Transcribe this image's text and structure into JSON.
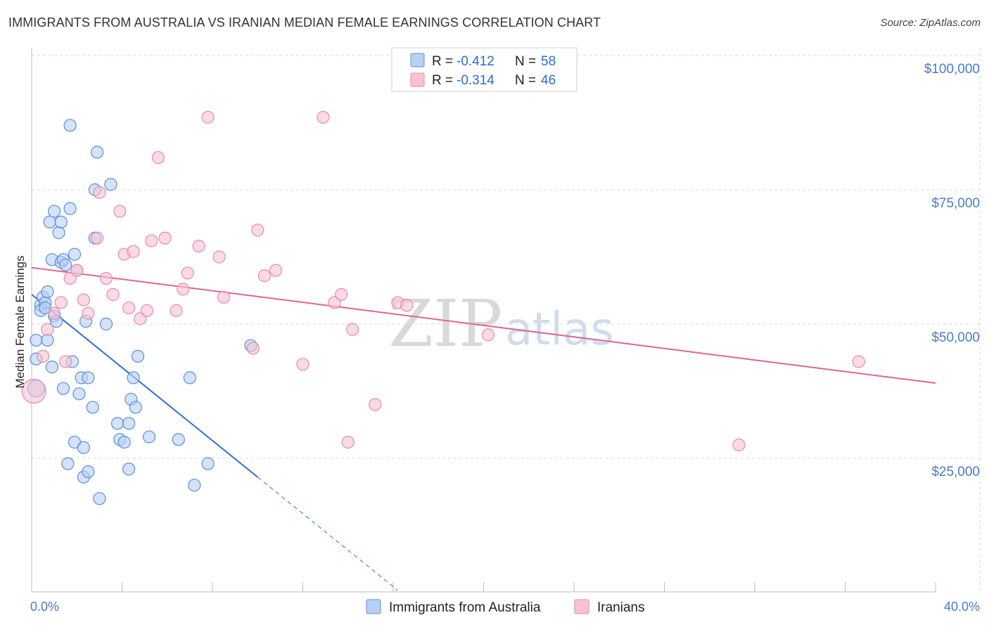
{
  "header": {
    "title": "IMMIGRANTS FROM AUSTRALIA VS IRANIAN MEDIAN FEMALE EARNINGS CORRELATION CHART",
    "source": "Source: ZipAtlas.com"
  },
  "watermark": {
    "zip": "ZIP",
    "atlas": "atlas"
  },
  "colors": {
    "series1_fill": "#b7d0f3",
    "series1_stroke": "#5b8fd9",
    "series1_line": "#2f6fd4",
    "series2_fill": "#f7c3d3",
    "series2_stroke": "#e88aa8",
    "series2_line": "#e0668f",
    "grid": "#d8d8d8",
    "tick_text": "#4a7cc8"
  },
  "legend": {
    "rows": [
      {
        "r_label": "R = ",
        "r_value": "-0.412",
        "n_label": "N = ",
        "n_value": "58"
      },
      {
        "r_label": "R = ",
        "r_value": "-0.314",
        "n_label": "N = ",
        "n_value": "46"
      }
    ]
  },
  "chart_data": {
    "type": "scatter",
    "title": "IMMIGRANTS FROM AUSTRALIA VS IRANIAN MEDIAN FEMALE EARNINGS CORRELATION CHART",
    "xlabel": "",
    "ylabel": "Median Female Earnings",
    "xlim": [
      0,
      40
    ],
    "ylim": [
      0,
      105000
    ],
    "x_tick_labels": [
      "0.0%",
      "40.0%"
    ],
    "y_ticks": [
      {
        "value": 25000,
        "label": "$25,000"
      },
      {
        "value": 50000,
        "label": "$50,000"
      },
      {
        "value": 75000,
        "label": "$75,000"
      },
      {
        "value": 100000,
        "label": "$100,000"
      }
    ],
    "grid": true,
    "series": [
      {
        "name": "Immigrants from Australia",
        "trend": {
          "x0": 0.0,
          "y0": 55500,
          "x1": 10.0,
          "y1": 21500,
          "dash_to_x": 16.2
        },
        "points": [
          [
            0.2,
            38000
          ],
          [
            0.2,
            47000
          ],
          [
            0.2,
            43500
          ],
          [
            0.4,
            53500
          ],
          [
            0.4,
            52500
          ],
          [
            0.5,
            55000
          ],
          [
            0.6,
            54000
          ],
          [
            0.7,
            56000
          ],
          [
            0.7,
            47000
          ],
          [
            0.8,
            69000
          ],
          [
            0.9,
            62000
          ],
          [
            0.9,
            42000
          ],
          [
            1.0,
            71000
          ],
          [
            1.0,
            51500
          ],
          [
            1.1,
            50500
          ],
          [
            1.2,
            67000
          ],
          [
            1.3,
            69000
          ],
          [
            1.3,
            61500
          ],
          [
            1.4,
            62000
          ],
          [
            1.4,
            38000
          ],
          [
            1.5,
            61000
          ],
          [
            1.6,
            24000
          ],
          [
            1.7,
            87000
          ],
          [
            1.7,
            71500
          ],
          [
            1.8,
            43000
          ],
          [
            1.9,
            63000
          ],
          [
            1.9,
            28000
          ],
          [
            2.0,
            60000
          ],
          [
            2.1,
            37000
          ],
          [
            2.2,
            40000
          ],
          [
            2.3,
            21500
          ],
          [
            2.3,
            27000
          ],
          [
            2.4,
            50500
          ],
          [
            2.5,
            22500
          ],
          [
            2.7,
            34500
          ],
          [
            2.8,
            75000
          ],
          [
            2.8,
            66000
          ],
          [
            2.9,
            82000
          ],
          [
            3.0,
            17500
          ],
          [
            3.3,
            50000
          ],
          [
            3.5,
            76000
          ],
          [
            3.8,
            31500
          ],
          [
            3.9,
            28500
          ],
          [
            4.1,
            28000
          ],
          [
            4.3,
            31500
          ],
          [
            4.3,
            23000
          ],
          [
            4.4,
            36000
          ],
          [
            4.5,
            40000
          ],
          [
            4.6,
            34500
          ],
          [
            4.7,
            44000
          ],
          [
            5.2,
            29000
          ],
          [
            6.5,
            28500
          ],
          [
            7.0,
            40000
          ],
          [
            7.2,
            20000
          ],
          [
            7.8,
            24000
          ],
          [
            9.7,
            46000
          ],
          [
            2.5,
            40000
          ],
          [
            0.6,
            53000
          ]
        ]
      },
      {
        "name": "Iranians",
        "trend": {
          "x0": 0.0,
          "y0": 60500,
          "x1": 40.0,
          "y1": 39000
        },
        "points": [
          [
            0.1,
            37500
          ],
          [
            0.5,
            44000
          ],
          [
            0.7,
            49000
          ],
          [
            1.0,
            52000
          ],
          [
            1.3,
            54000
          ],
          [
            1.5,
            43000
          ],
          [
            1.7,
            58500
          ],
          [
            2.0,
            60000
          ],
          [
            2.3,
            54500
          ],
          [
            2.5,
            52000
          ],
          [
            2.9,
            66000
          ],
          [
            3.0,
            74500
          ],
          [
            3.3,
            58500
          ],
          [
            3.6,
            55500
          ],
          [
            3.9,
            71000
          ],
          [
            4.1,
            63000
          ],
          [
            4.3,
            53000
          ],
          [
            4.5,
            63500
          ],
          [
            4.8,
            51000
          ],
          [
            5.1,
            52500
          ],
          [
            5.3,
            65500
          ],
          [
            5.6,
            81000
          ],
          [
            5.9,
            66000
          ],
          [
            6.4,
            52500
          ],
          [
            6.7,
            56500
          ],
          [
            6.9,
            59500
          ],
          [
            7.4,
            64500
          ],
          [
            7.8,
            88500
          ],
          [
            8.3,
            62500
          ],
          [
            8.5,
            55000
          ],
          [
            9.8,
            45500
          ],
          [
            10.0,
            67500
          ],
          [
            10.3,
            59000
          ],
          [
            10.8,
            60000
          ],
          [
            12.0,
            42500
          ],
          [
            12.9,
            88500
          ],
          [
            13.4,
            54000
          ],
          [
            13.7,
            55500
          ],
          [
            14.0,
            28000
          ],
          [
            14.2,
            49000
          ],
          [
            15.2,
            35000
          ],
          [
            16.2,
            54000
          ],
          [
            16.6,
            53500
          ],
          [
            20.2,
            48000
          ],
          [
            31.3,
            27500
          ],
          [
            36.6,
            43000
          ]
        ]
      }
    ]
  }
}
